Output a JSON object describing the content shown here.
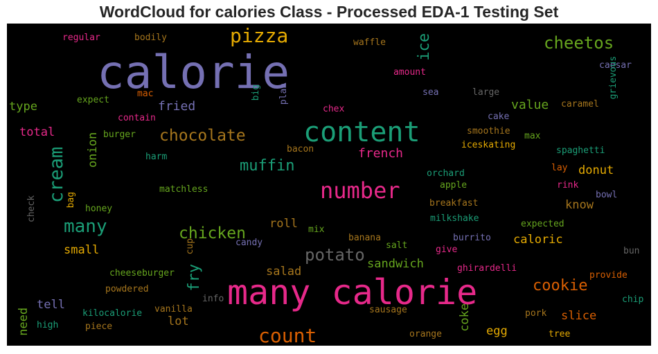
{
  "chart_data": {
    "type": "wordcloud",
    "title": "WordCloud for calories Class - Processed EDA-1 Testing Set",
    "background": "#000000",
    "words": [
      {
        "text": "calorie",
        "color": "#7570b3"
      },
      {
        "text": "many calorie",
        "color": "#e7298a"
      },
      {
        "text": "content",
        "color": "#1b9e77"
      },
      {
        "text": "number",
        "color": "#e7298a"
      },
      {
        "text": "count",
        "color": "#d95f02"
      },
      {
        "text": "pizza",
        "color": "#e6ab02"
      },
      {
        "text": "cheetos",
        "color": "#66a61e"
      },
      {
        "text": "cream",
        "color": "#1b9e77"
      },
      {
        "text": "many",
        "color": "#1b9e77"
      },
      {
        "text": "chocolate",
        "color": "#a6761d"
      },
      {
        "text": "chicken",
        "color": "#66a61e"
      },
      {
        "text": "potato",
        "color": "#666666"
      },
      {
        "text": "muffin",
        "color": "#1b9e77"
      },
      {
        "text": "ice",
        "color": "#1b9e77"
      },
      {
        "text": "cookie",
        "color": "#d95f02"
      },
      {
        "text": "fry",
        "color": "#1b9e77"
      },
      {
        "text": "french",
        "color": "#e7298a"
      },
      {
        "text": "fried",
        "color": "#7570b3"
      },
      {
        "text": "value",
        "color": "#66a61e"
      },
      {
        "text": "type",
        "color": "#66a61e"
      },
      {
        "text": "total",
        "color": "#e7298a"
      },
      {
        "text": "onion",
        "color": "#66a61e"
      },
      {
        "text": "roll",
        "color": "#a6761d"
      },
      {
        "text": "donut",
        "color": "#e6ab02"
      },
      {
        "text": "know",
        "color": "#a6761d"
      },
      {
        "text": "small",
        "color": "#e6ab02"
      },
      {
        "text": "sandwich",
        "color": "#66a61e"
      },
      {
        "text": "salad",
        "color": "#a6761d"
      },
      {
        "text": "caloric",
        "color": "#e6ab02"
      },
      {
        "text": "slice",
        "color": "#d95f02"
      },
      {
        "text": "tell",
        "color": "#7570b3"
      },
      {
        "text": "lot",
        "color": "#a6761d"
      },
      {
        "text": "egg",
        "color": "#e6ab02"
      },
      {
        "text": "coke",
        "color": "#66a61e"
      },
      {
        "text": "need",
        "color": "#66a61e"
      },
      {
        "text": "regular",
        "color": "#e7298a"
      },
      {
        "text": "bodily",
        "color": "#a6761d"
      },
      {
        "text": "waffle",
        "color": "#a6761d"
      },
      {
        "text": "amount",
        "color": "#e7298a"
      },
      {
        "text": "caesar",
        "color": "#7570b3"
      },
      {
        "text": "grievous",
        "color": "#1b9e77"
      },
      {
        "text": "mac",
        "color": "#d95f02"
      },
      {
        "text": "expect",
        "color": "#66a61e"
      },
      {
        "text": "big",
        "color": "#1b9e77"
      },
      {
        "text": "plan",
        "color": "#7570b3"
      },
      {
        "text": "sea",
        "color": "#7570b3"
      },
      {
        "text": "large",
        "color": "#666666"
      },
      {
        "text": "contain",
        "color": "#e7298a"
      },
      {
        "text": "chex",
        "color": "#e7298a"
      },
      {
        "text": "cake",
        "color": "#7570b3"
      },
      {
        "text": "caramel",
        "color": "#a6761d"
      },
      {
        "text": "burger",
        "color": "#66a61e"
      },
      {
        "text": "smoothie",
        "color": "#a6761d"
      },
      {
        "text": "max",
        "color": "#66a61e"
      },
      {
        "text": "iceskating",
        "color": "#e6ab02"
      },
      {
        "text": "bacon",
        "color": "#a6761d"
      },
      {
        "text": "spaghetti",
        "color": "#1b9e77"
      },
      {
        "text": "harm",
        "color": "#1b9e77"
      },
      {
        "text": "orchard",
        "color": "#1b9e77"
      },
      {
        "text": "lay",
        "color": "#d95f02"
      },
      {
        "text": "apple",
        "color": "#66a61e"
      },
      {
        "text": "rink",
        "color": "#e7298a"
      },
      {
        "text": "matchless",
        "color": "#66a61e"
      },
      {
        "text": "bag",
        "color": "#e6ab02"
      },
      {
        "text": "check",
        "color": "#666666"
      },
      {
        "text": "bowl",
        "color": "#7570b3"
      },
      {
        "text": "breakfast",
        "color": "#a6761d"
      },
      {
        "text": "honey",
        "color": "#66a61e"
      },
      {
        "text": "milkshake",
        "color": "#1b9e77"
      },
      {
        "text": "expected",
        "color": "#66a61e"
      },
      {
        "text": "mix",
        "color": "#66a61e"
      },
      {
        "text": "banana",
        "color": "#a6761d"
      },
      {
        "text": "burrito",
        "color": "#7570b3"
      },
      {
        "text": "candy",
        "color": "#7570b3"
      },
      {
        "text": "salt",
        "color": "#66a61e"
      },
      {
        "text": "cup",
        "color": "#a6761d"
      },
      {
        "text": "give",
        "color": "#e7298a"
      },
      {
        "text": "bun",
        "color": "#666666"
      },
      {
        "text": "ghirardelli",
        "color": "#e7298a"
      },
      {
        "text": "cheeseburger",
        "color": "#66a61e"
      },
      {
        "text": "provide",
        "color": "#d95f02"
      },
      {
        "text": "powdered",
        "color": "#a6761d"
      },
      {
        "text": "info",
        "color": "#666666"
      },
      {
        "text": "chip",
        "color": "#1b9e77"
      },
      {
        "text": "vanilla",
        "color": "#a6761d"
      },
      {
        "text": "kilocalorie",
        "color": "#1b9e77"
      },
      {
        "text": "sausage",
        "color": "#a6761d"
      },
      {
        "text": "pork",
        "color": "#a6761d"
      },
      {
        "text": "high",
        "color": "#1b9e77"
      },
      {
        "text": "piece",
        "color": "#a6761d"
      },
      {
        "text": "orange",
        "color": "#a6761d"
      },
      {
        "text": "tree",
        "color": "#e6ab02"
      }
    ]
  }
}
